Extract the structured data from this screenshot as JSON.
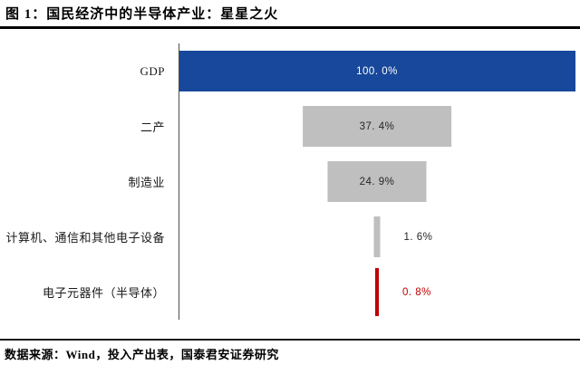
{
  "header": {
    "title": "图 1：国民经济中的半导体产业：星星之火"
  },
  "footer": {
    "source": "数据来源：Wind，投入产出表，国泰君安证券研究"
  },
  "colors": {
    "bar_blue": "#17489B",
    "bar_gray": "#BFBFBF",
    "bar_red": "#C00000",
    "axis_line": "#4D4D4D",
    "rule_black": "#000000",
    "value_text_light": "#FFFFFF",
    "value_text_dark": "#262626"
  },
  "chart_data": {
    "type": "bar",
    "orientation": "horizontal",
    "style": "centered-funnel",
    "title": "图 1：国民经济中的半导体产业：星星之火",
    "categories": [
      "GDP",
      "二产",
      "制造业",
      "计算机、通信和其他电子设备",
      "电子元器件（半导体）"
    ],
    "values": [
      100.0,
      37.4,
      24.9,
      1.6,
      0.8
    ],
    "unit": "%",
    "value_labels": [
      "100. 0%",
      "37. 4%",
      "24. 9%",
      "1. 6%",
      "0. 8%"
    ],
    "bar_colors": [
      "#17489B",
      "#BFBFBF",
      "#BFBFBF",
      "#BFBFBF",
      "#C00000"
    ],
    "label_placement": [
      "inside",
      "inside",
      "inside",
      "outside",
      "outside"
    ],
    "label_colors": [
      "#FFFFFF",
      "#262626",
      "#262626",
      "#262626",
      "#C00000"
    ],
    "xlim": [
      0,
      100
    ],
    "grid": false,
    "legend": false,
    "xlabel": "",
    "ylabel": ""
  }
}
